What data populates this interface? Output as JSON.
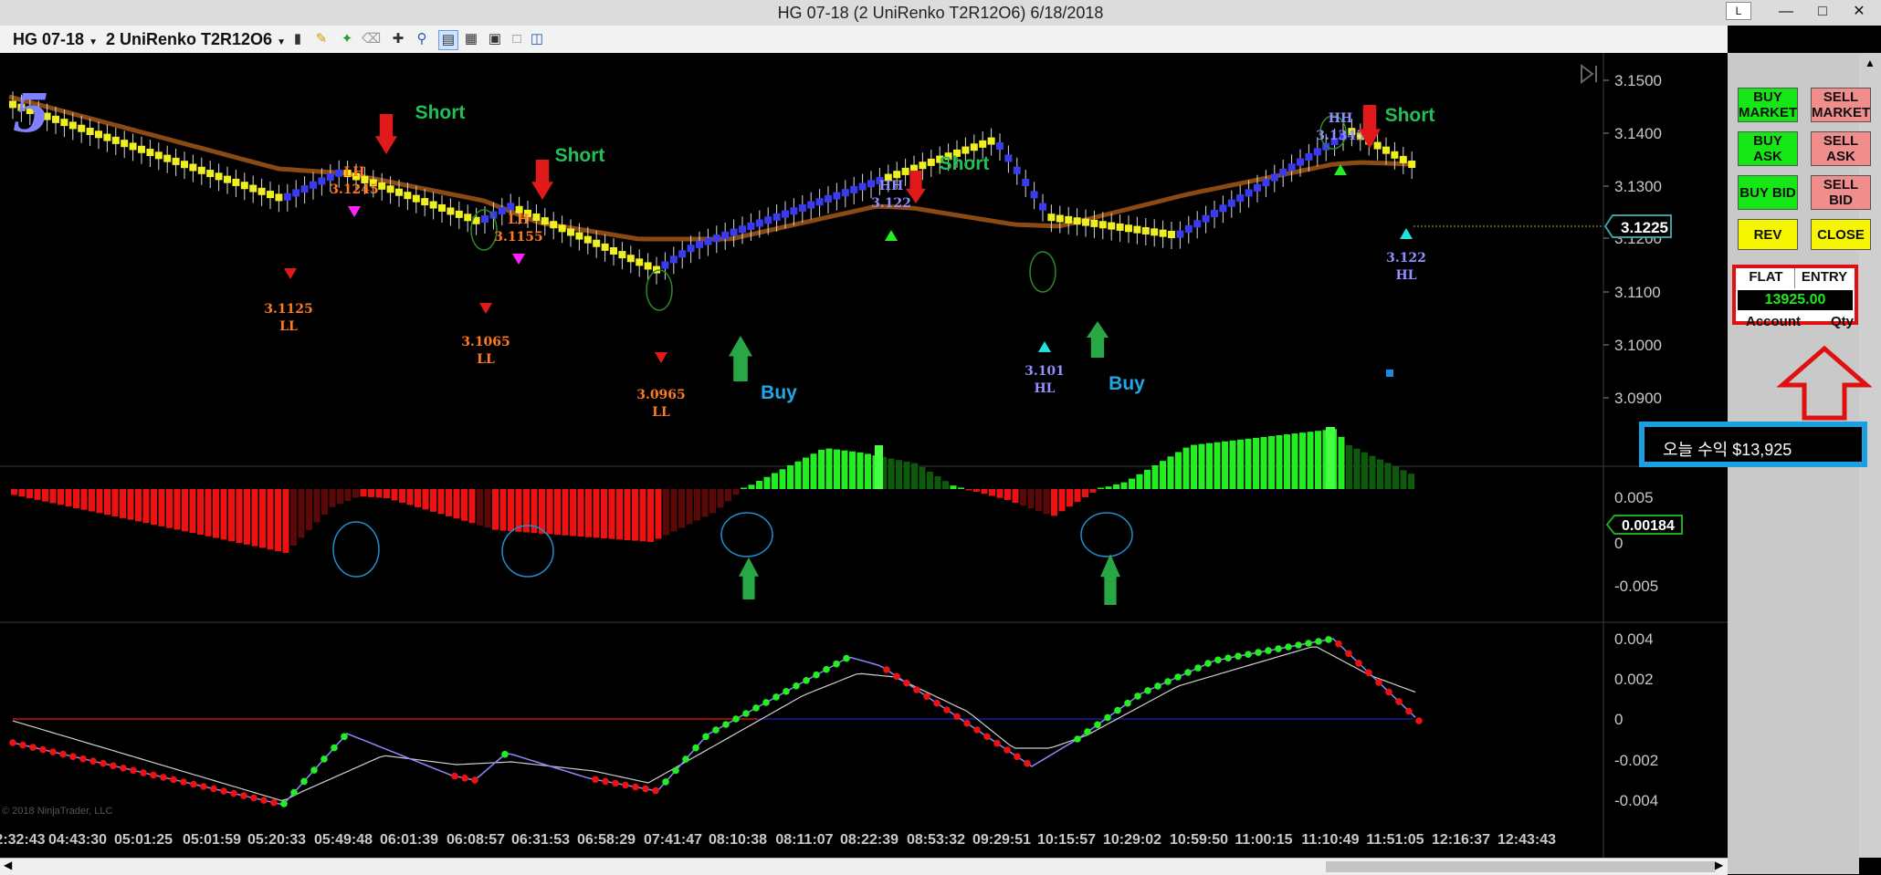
{
  "window": {
    "title": "HG 07-18 (2 UniRenko T2R12O6)  6/18/2018",
    "badge": "L"
  },
  "toolbar": {
    "instrument": "HG 07-18",
    "bar_type": "2 UniRenko T2R12O6",
    "icons": [
      "candlestick-icon",
      "pencil-icon",
      "pin-icon",
      "eraser-icon",
      "crosshair-icon",
      "zoom-icon",
      "chart-style-icon",
      "properties-icon",
      "templates-icon",
      "data-box-icon",
      "panels-icon"
    ]
  },
  "chart": {
    "panel_number": "5",
    "copyright": "© 2018 NinjaTrader, LLC",
    "price_scale": [
      "3.1500",
      "3.1400",
      "3.1300",
      "3.1200",
      "3.1100",
      "3.1000",
      "3.0900"
    ],
    "current_price": "3.1225",
    "osc_scale": [
      "0.005",
      "0",
      "-0.005"
    ],
    "osc_current": "0.00184",
    "macd_scale": [
      "0.004",
      "0.002",
      "0",
      "-0.002",
      "-0.004"
    ],
    "time_labels": [
      "2:32:43",
      "04:43:30",
      "05:01:25",
      "05:01:59",
      "05:20:33",
      "05:49:48",
      "06:01:39",
      "06:08:57",
      "06:31:53",
      "06:58:29",
      "07:41:47",
      "08:10:38",
      "08:11:07",
      "08:22:39",
      "08:53:32",
      "09:29:51",
      "10:15:57",
      "10:29:02",
      "10:59:50",
      "11:00:15",
      "11:10:49",
      "11:51:05",
      "12:16:37",
      "12:43:43"
    ],
    "annotations": {
      "short1": "Short",
      "short2": "Short",
      "short3": "Short",
      "short4": "Short",
      "buy1": "Buy",
      "buy2": "Buy",
      "ll1_price": "3.1125",
      "ll1_tag": "LL",
      "lh1_tag": "LH",
      "lh1_price": "3.1245",
      "ll2_price": "3.1065",
      "ll2_tag": "LL",
      "lh2_tag": "LH",
      "lh2_price": "3.1155",
      "ll3_price": "3.0965",
      "ll3_tag": "LL",
      "hh1_tag": "HH",
      "hh1_price": "3.122",
      "hl1_price": "3.101",
      "hl1_tag": "HL",
      "hh2_tag": "HH",
      "hh2_price": "3.1345",
      "hl2_price": "3.122",
      "hl2_tag": "HL"
    }
  },
  "order_panel": {
    "buy_market": "BUY MARKET",
    "sell_market": "SELL MARKET",
    "buy_ask": "BUY ASK",
    "sell_ask": "SELL ASK",
    "buy_bid": "BUY BID",
    "sell_bid": "SELL BID",
    "rev": "REV",
    "close": "CLOSE",
    "flat": "FLAT",
    "entry": "ENTRY",
    "pnl": "13925.00",
    "account_label": "Account",
    "qty_label": "Qty"
  },
  "profit_note": "오늘 수익 $13,925",
  "colors": {
    "up_bar": "#3a3af0",
    "down_bar": "#f0f01e",
    "ma_line": "#8a4a14",
    "osc_pos": "#22ee22",
    "osc_neg": "#ee1111",
    "macd_up": "#22ee22",
    "macd_down": "#ee1111"
  }
}
